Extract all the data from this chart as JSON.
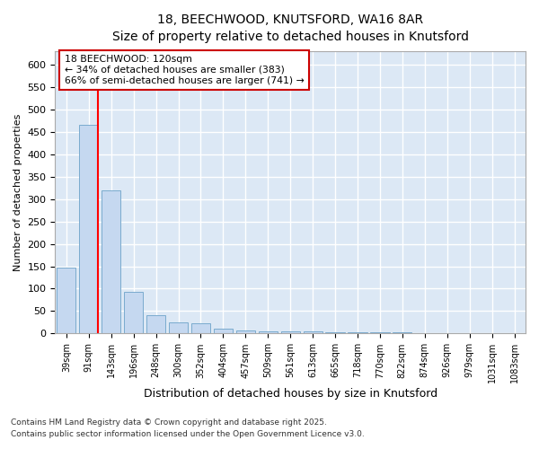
{
  "title1": "18, BEECHWOOD, KNUTSFORD, WA16 8AR",
  "title2": "Size of property relative to detached houses in Knutsford",
  "xlabel": "Distribution of detached houses by size in Knutsford",
  "ylabel": "Number of detached properties",
  "bins": [
    "39sqm",
    "91sqm",
    "143sqm",
    "196sqm",
    "248sqm",
    "300sqm",
    "352sqm",
    "404sqm",
    "457sqm",
    "509sqm",
    "561sqm",
    "613sqm",
    "665sqm",
    "718sqm",
    "770sqm",
    "822sqm",
    "874sqm",
    "926sqm",
    "979sqm",
    "1031sqm",
    "1083sqm"
  ],
  "values": [
    148,
    465,
    320,
    93,
    40,
    25,
    22,
    10,
    7,
    5,
    5,
    4,
    3,
    3,
    2,
    2,
    1,
    1,
    1,
    1,
    1
  ],
  "bar_color": "#c5d8f0",
  "bar_edge_color": "#7aabce",
  "annotation_title": "18 BEECHWOOD: 120sqm",
  "annotation_line1": "← 34% of detached houses are smaller (383)",
  "annotation_line2": "66% of semi-detached houses are larger (741) →",
  "annotation_box_color": "#ffffff",
  "annotation_box_edge": "#cc0000",
  "ylim": [
    0,
    630
  ],
  "yticks": [
    0,
    50,
    100,
    150,
    200,
    250,
    300,
    350,
    400,
    450,
    500,
    550,
    600
  ],
  "footer1": "Contains HM Land Registry data © Crown copyright and database right 2025.",
  "footer2": "Contains public sector information licensed under the Open Government Licence v3.0.",
  "bg_color": "#ffffff",
  "axes_bg_color": "#dce8f5",
  "grid_color": "#ffffff"
}
